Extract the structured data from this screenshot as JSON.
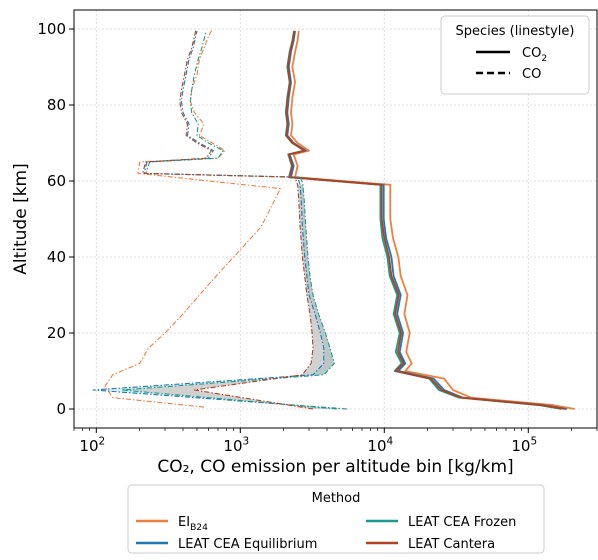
{
  "chart_data": {
    "type": "line",
    "xlabel": "CO₂, CO emission per altitude bin [kg/km]",
    "ylabel": "Altitude [km]",
    "x_scale": "log",
    "xlim": [
      70,
      300000
    ],
    "ylim": [
      -5,
      105
    ],
    "x_ticks": [
      {
        "value": 100,
        "label": "10",
        "sup": "2"
      },
      {
        "value": 1000,
        "label": "10",
        "sup": "3"
      },
      {
        "value": 10000,
        "label": "10",
        "sup": "4"
      },
      {
        "value": 100000,
        "label": "10",
        "sup": "5"
      }
    ],
    "y_ticks": [
      0,
      20,
      40,
      60,
      80,
      100
    ],
    "grid": true,
    "legend_species": {
      "title": "Species (linestyle)",
      "location": "top-right",
      "entries": [
        {
          "label": "CO",
          "sub": "2",
          "linestyle": "solid"
        },
        {
          "label": "CO",
          "sub": "",
          "linestyle": "dashed"
        }
      ]
    },
    "legend_method": {
      "title": "Method",
      "location": "bottom",
      "entries": [
        {
          "label": "EI",
          "sub": "B24",
          "color": "#f07f3c"
        },
        {
          "label": "LEAT CEA Equilibrium",
          "sub": "",
          "color": "#1f77b4"
        },
        {
          "label": "LEAT CEA Frozen",
          "sub": "",
          "color": "#1a9c8c"
        },
        {
          "label": "LEAT Cantera",
          "sub": "",
          "color": "#b5401f"
        }
      ]
    },
    "series": [
      {
        "name": "EI B24",
        "species": "CO2",
        "color": "#f07f3c",
        "x": [
          210000,
          150000,
          40000,
          30000,
          26000,
          14000,
          15500,
          14200,
          15000,
          13800,
          14500,
          13000,
          12500,
          11500,
          11000,
          11000,
          2400,
          2500,
          2350,
          3000,
          2500,
          2250,
          2300,
          2250,
          2300,
          2400,
          2300,
          2400,
          2500,
          2550
        ],
        "y": [
          0,
          1,
          3,
          5,
          8,
          10,
          12,
          15,
          20,
          25,
          30,
          35,
          40,
          45,
          50,
          59,
          61,
          64,
          67,
          68,
          70,
          72,
          75,
          78,
          82,
          86,
          90,
          94,
          97,
          99.5
        ]
      },
      {
        "name": "LEAT CEA Equilibrium",
        "species": "CO2",
        "color": "#1f77b4",
        "x": [
          185000,
          130000,
          35000,
          26000,
          22000,
          12500,
          14000,
          12800,
          13500,
          12300,
          13000,
          11600,
          11200,
          10300,
          9900,
          9900,
          2250,
          2350,
          2200,
          2850,
          2350,
          2120,
          2170,
          2120,
          2170,
          2250,
          2170,
          2250,
          2350,
          2400
        ],
        "y": [
          0,
          1,
          3,
          5,
          8,
          10,
          12,
          15,
          20,
          25,
          30,
          35,
          40,
          45,
          50,
          59,
          61,
          64,
          67,
          68,
          70,
          72,
          75,
          78,
          82,
          86,
          90,
          94,
          97,
          99.5
        ]
      },
      {
        "name": "LEAT CEA Frozen",
        "species": "CO2",
        "color": "#1a9c8c",
        "x": [
          170000,
          120000,
          33000,
          24000,
          20500,
          11800,
          13200,
          12000,
          12800,
          11600,
          12300,
          10900,
          10500,
          9700,
          9400,
          9400,
          2180,
          2280,
          2150,
          2780,
          2290,
          2070,
          2120,
          2070,
          2120,
          2200,
          2120,
          2200,
          2300,
          2360
        ],
        "y": [
          0,
          1,
          3,
          5,
          8,
          10,
          12,
          15,
          20,
          25,
          30,
          35,
          40,
          45,
          50,
          59,
          61,
          64,
          67,
          68,
          70,
          72,
          75,
          78,
          82,
          86,
          90,
          94,
          97,
          99.5
        ]
      },
      {
        "name": "LEAT Cantera",
        "species": "CO2",
        "color": "#b5401f",
        "x": [
          180000,
          125000,
          34000,
          25000,
          21000,
          12000,
          13600,
          12400,
          13100,
          11900,
          12600,
          11200,
          10800,
          10000,
          9600,
          9600,
          2200,
          2300,
          2180,
          2800,
          2310,
          2090,
          2140,
          2090,
          2140,
          2220,
          2140,
          2220,
          2320,
          2380
        ],
        "y": [
          0,
          1,
          3,
          5,
          8,
          10,
          12,
          15,
          20,
          25,
          30,
          35,
          40,
          45,
          50,
          59,
          61,
          64,
          67,
          68,
          70,
          72,
          75,
          78,
          82,
          86,
          90,
          94,
          97,
          99.5
        ]
      },
      {
        "name": "EI B24",
        "species": "CO",
        "color": "#f07f3c",
        "x": [
          560,
          130,
          115,
          130,
          200,
          230,
          300,
          400,
          520,
          680,
          900,
          1400,
          1900,
          195,
          200,
          700,
          780,
          640,
          520,
          560,
          480,
          450,
          460,
          500,
          520,
          560,
          600,
          640
        ],
        "y": [
          0.5,
          3,
          6,
          9,
          12,
          16,
          20,
          25,
          30,
          35,
          40,
          48,
          58,
          62,
          65,
          66,
          68,
          70,
          72,
          75,
          78,
          81,
          84,
          88,
          92,
          95,
          98,
          100
        ]
      },
      {
        "name": "LEAT CEA Equilibrium",
        "species": "CO",
        "color": "#1f77b4",
        "x": [
          5500,
          95,
          3200,
          3800,
          3800,
          3600,
          3300,
          3000,
          2900,
          2800,
          2700,
          2650,
          2600,
          2500,
          215,
          225,
          600,
          650,
          520,
          430,
          440,
          400,
          390,
          400,
          420,
          440,
          470,
          500
        ],
        "y": [
          0,
          5,
          9,
          12,
          16,
          20,
          25,
          30,
          35,
          40,
          48,
          55,
          59,
          61,
          62,
          65,
          66,
          68,
          70,
          72,
          75,
          78,
          81,
          84,
          88,
          92,
          95,
          99.5
        ]
      },
      {
        "name": "LEAT CEA Frozen",
        "species": "CO",
        "color": "#1a9c8c",
        "x": [
          4700,
          150,
          3800,
          4500,
          4200,
          3900,
          3500,
          3200,
          3050,
          2950,
          2850,
          2780,
          2720,
          2620,
          220,
          235,
          700,
          760,
          600,
          500,
          510,
          460,
          450,
          460,
          480,
          510,
          540,
          580
        ],
        "y": [
          0,
          5,
          9,
          12,
          16,
          20,
          25,
          30,
          35,
          40,
          48,
          55,
          59,
          61,
          62,
          65,
          66,
          68,
          70,
          72,
          75,
          78,
          81,
          84,
          88,
          92,
          95,
          99.5
        ]
      },
      {
        "name": "LEAT Cantera",
        "species": "CO",
        "color": "#b5401f",
        "x": [
          3200,
          480,
          2700,
          3100,
          3200,
          3150,
          3050,
          2900,
          2800,
          2700,
          2600,
          2550,
          2500,
          2400,
          210,
          220,
          580,
          630,
          500,
          420,
          430,
          390,
          380,
          390,
          410,
          430,
          460,
          490
        ],
        "y": [
          0,
          5,
          9,
          12,
          16,
          20,
          25,
          30,
          35,
          40,
          48,
          55,
          59,
          61,
          62,
          65,
          66,
          68,
          70,
          72,
          75,
          78,
          81,
          84,
          88,
          92,
          95,
          99.5
        ]
      }
    ]
  }
}
